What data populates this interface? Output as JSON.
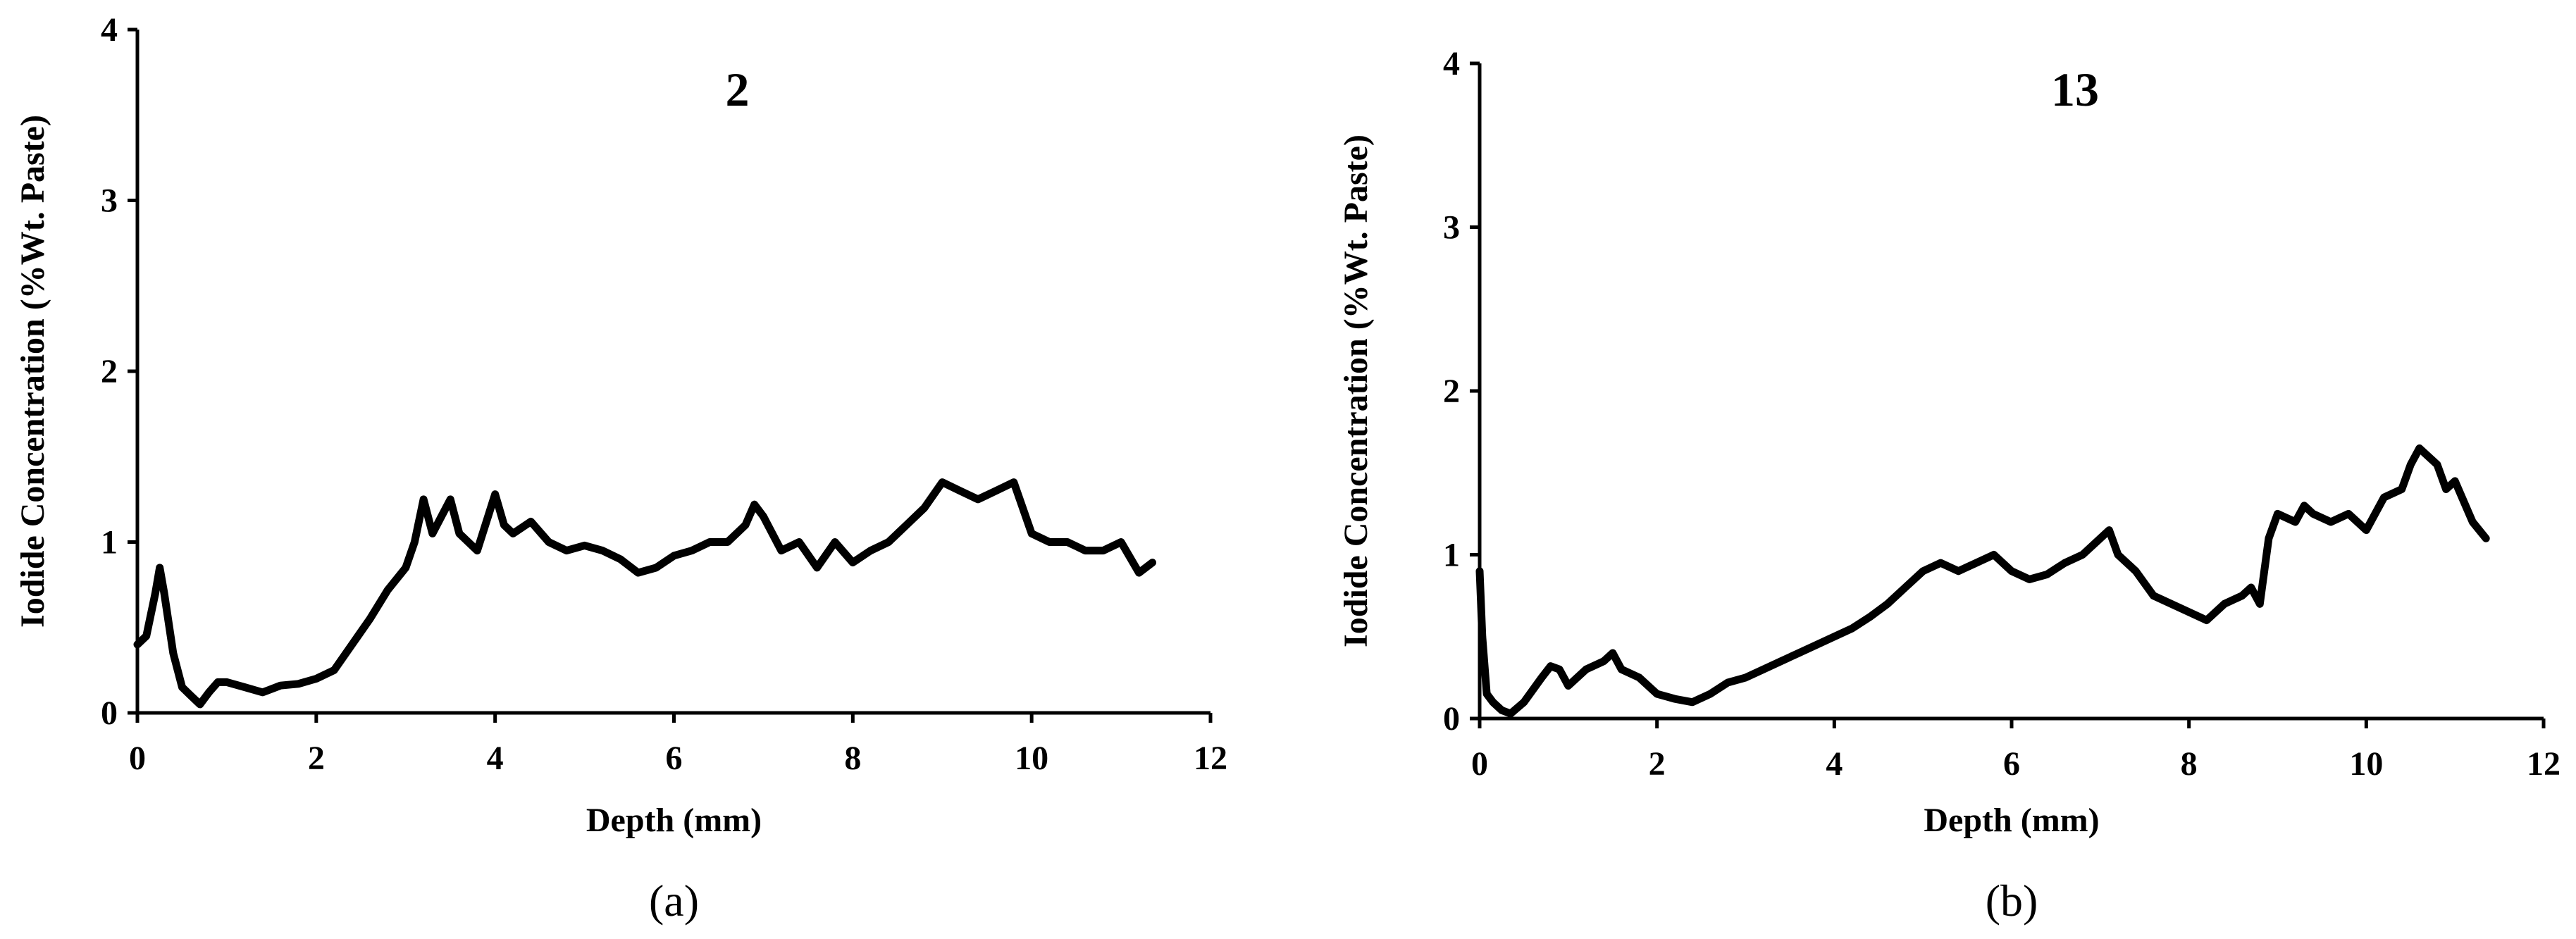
{
  "chart_data": [
    {
      "type": "line",
      "title": "2",
      "panel_label": "(a)",
      "xlabel": "Depth (mm)",
      "ylabel": "Iodide Concentration (%Wt. Paste)",
      "xlim": [
        0,
        12
      ],
      "ylim": [
        0,
        4
      ],
      "xticks": [
        "0",
        "2",
        "4",
        "6",
        "8",
        "10",
        "12"
      ],
      "yticks": [
        "0",
        "1",
        "2",
        "3",
        "4"
      ],
      "grid": false,
      "legend": "none",
      "line_color": "#000000",
      "x": [
        0.0,
        0.1,
        0.2,
        0.25,
        0.3,
        0.4,
        0.5,
        0.6,
        0.7,
        0.8,
        0.9,
        1.0,
        1.2,
        1.4,
        1.6,
        1.8,
        2.0,
        2.2,
        2.4,
        2.6,
        2.8,
        3.0,
        3.1,
        3.2,
        3.3,
        3.4,
        3.5,
        3.6,
        3.8,
        4.0,
        4.1,
        4.2,
        4.4,
        4.6,
        4.8,
        5.0,
        5.2,
        5.4,
        5.6,
        5.8,
        6.0,
        6.2,
        6.4,
        6.6,
        6.8,
        6.9,
        7.0,
        7.2,
        7.4,
        7.6,
        7.8,
        8.0,
        8.2,
        8.4,
        8.6,
        8.8,
        9.0,
        9.2,
        9.4,
        9.6,
        9.8,
        10.0,
        10.2,
        10.4,
        10.6,
        10.8,
        11.0,
        11.2,
        11.35
      ],
      "y": [
        0.4,
        0.45,
        0.7,
        0.85,
        0.7,
        0.35,
        0.15,
        0.1,
        0.05,
        0.12,
        0.18,
        0.18,
        0.15,
        0.12,
        0.16,
        0.17,
        0.2,
        0.25,
        0.4,
        0.55,
        0.72,
        0.85,
        1.0,
        1.25,
        1.05,
        1.15,
        1.25,
        1.05,
        0.95,
        1.28,
        1.1,
        1.05,
        1.12,
        1.0,
        0.95,
        0.98,
        0.95,
        0.9,
        0.82,
        0.85,
        0.92,
        0.95,
        1.0,
        1.0,
        1.1,
        1.22,
        1.15,
        0.95,
        1.0,
        0.85,
        1.0,
        0.88,
        0.95,
        1.0,
        1.1,
        1.2,
        1.35,
        1.3,
        1.25,
        1.3,
        1.35,
        1.05,
        1.0,
        1.0,
        0.95,
        0.95,
        1.0,
        0.82,
        0.88
      ]
    },
    {
      "type": "line",
      "title": "13",
      "panel_label": "(b)",
      "xlabel": "Depth (mm)",
      "ylabel": "Iodide Concentration (%Wt. Paste)",
      "xlim": [
        0,
        12
      ],
      "ylim": [
        0,
        4
      ],
      "xticks": [
        "0",
        "2",
        "4",
        "6",
        "8",
        "10",
        "12"
      ],
      "yticks": [
        "0",
        "1",
        "2",
        "3",
        "4"
      ],
      "grid": false,
      "legend": "none",
      "line_color": "#000000",
      "x": [
        0.0,
        0.03,
        0.08,
        0.15,
        0.25,
        0.35,
        0.5,
        0.7,
        0.8,
        0.9,
        1.0,
        1.2,
        1.4,
        1.5,
        1.6,
        1.8,
        2.0,
        2.2,
        2.4,
        2.6,
        2.8,
        3.0,
        3.2,
        3.4,
        3.6,
        3.8,
        4.0,
        4.2,
        4.4,
        4.6,
        4.8,
        5.0,
        5.2,
        5.4,
        5.6,
        5.8,
        6.0,
        6.2,
        6.4,
        6.6,
        6.8,
        7.0,
        7.1,
        7.2,
        7.4,
        7.6,
        7.8,
        8.0,
        8.2,
        8.4,
        8.6,
        8.7,
        8.8,
        8.9,
        9.0,
        9.2,
        9.3,
        9.4,
        9.6,
        9.8,
        10.0,
        10.2,
        10.4,
        10.5,
        10.6,
        10.8,
        10.9,
        11.0,
        11.2,
        11.35
      ],
      "y": [
        0.9,
        0.5,
        0.15,
        0.1,
        0.05,
        0.03,
        0.1,
        0.25,
        0.32,
        0.3,
        0.2,
        0.3,
        0.35,
        0.4,
        0.3,
        0.25,
        0.15,
        0.12,
        0.1,
        0.15,
        0.22,
        0.25,
        0.3,
        0.35,
        0.4,
        0.45,
        0.5,
        0.55,
        0.62,
        0.7,
        0.8,
        0.9,
        0.95,
        0.9,
        0.95,
        1.0,
        0.9,
        0.85,
        0.88,
        0.95,
        1.0,
        1.1,
        1.15,
        1.0,
        0.9,
        0.75,
        0.7,
        0.65,
        0.6,
        0.7,
        0.75,
        0.8,
        0.7,
        1.1,
        1.25,
        1.2,
        1.3,
        1.25,
        1.2,
        1.25,
        1.15,
        1.35,
        1.4,
        1.55,
        1.65,
        1.55,
        1.4,
        1.45,
        1.2,
        1.1
      ]
    }
  ]
}
